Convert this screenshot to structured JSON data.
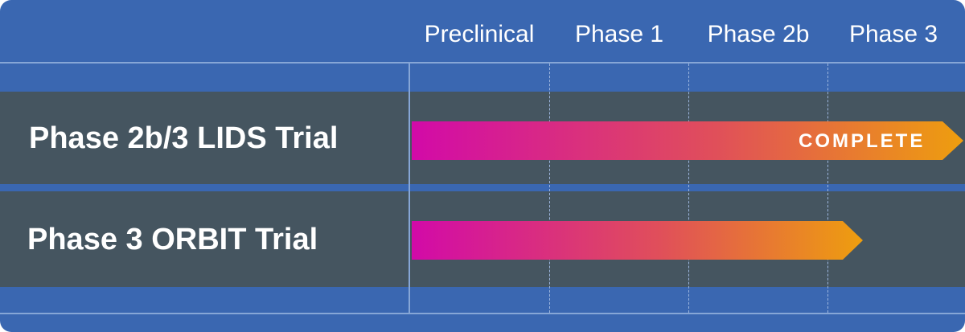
{
  "phases": [
    "Preclinical",
    "Phase 1",
    "Phase 2b",
    "Phase 3"
  ],
  "trials": [
    {
      "name": "Phase 2b/3 LIDS Trial",
      "status": "COMPLETE"
    },
    {
      "name": "Phase 3 ORBIT Trial",
      "status": ""
    }
  ],
  "colors": {
    "background": "#3a67b1",
    "band": "#455560",
    "grid": "#86a6d6",
    "bar_start": "#d20aa8",
    "bar_mid": "#e04f5a",
    "bar_end": "#ee9e0e"
  }
}
